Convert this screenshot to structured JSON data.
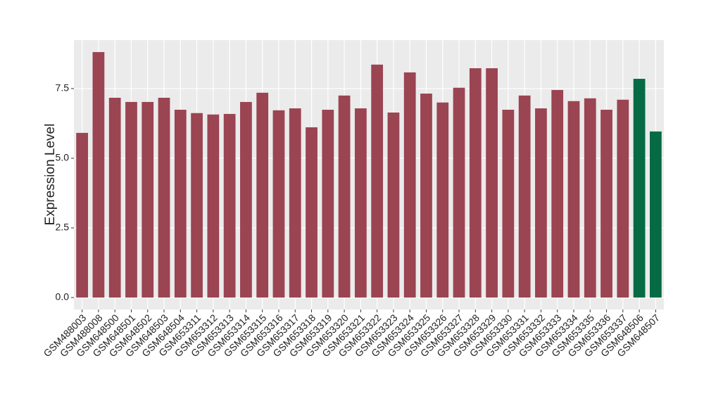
{
  "chart_data": {
    "type": "bar",
    "y_label": "Expression Level",
    "categories": [
      "GSM488003",
      "GSM488008",
      "GSM648500",
      "GSM648501",
      "GSM648502",
      "GSM648503",
      "GSM648504",
      "GSM653311",
      "GSM653312",
      "GSM653313",
      "GSM653314",
      "GSM653315",
      "GSM653316",
      "GSM653317",
      "GSM653318",
      "GSM653319",
      "GSM653320",
      "GSM653321",
      "GSM653322",
      "GSM653323",
      "GSM653324",
      "GSM653325",
      "GSM653326",
      "GSM653327",
      "GSM653328",
      "GSM653329",
      "GSM653330",
      "GSM653331",
      "GSM653332",
      "GSM653333",
      "GSM653334",
      "GSM653335",
      "GSM653336",
      "GSM653337",
      "GSM648506",
      "GSM648507"
    ],
    "values": [
      5.91,
      8.81,
      7.17,
      7.02,
      7.02,
      7.17,
      6.74,
      6.62,
      6.57,
      6.59,
      7.02,
      7.35,
      6.72,
      6.79,
      6.11,
      6.74,
      7.25,
      6.79,
      8.36,
      6.64,
      8.08,
      7.32,
      7.0,
      7.53,
      8.23,
      8.23,
      6.74,
      7.25,
      6.79,
      7.45,
      7.05,
      7.15,
      6.74,
      7.1,
      7.85,
      5.96
    ],
    "colors": [
      "#9b4452",
      "#9b4452",
      "#9b4452",
      "#9b4452",
      "#9b4452",
      "#9b4452",
      "#9b4452",
      "#9b4452",
      "#9b4452",
      "#9b4452",
      "#9b4452",
      "#9b4452",
      "#9b4452",
      "#9b4452",
      "#9b4452",
      "#9b4452",
      "#9b4452",
      "#9b4452",
      "#9b4452",
      "#9b4452",
      "#9b4452",
      "#9b4452",
      "#9b4452",
      "#9b4452",
      "#9b4452",
      "#9b4452",
      "#9b4452",
      "#9b4452",
      "#9b4452",
      "#9b4452",
      "#9b4452",
      "#9b4452",
      "#9b4452",
      "#9b4452",
      "#066a45",
      "#066a45"
    ],
    "ylim": [
      -0.43,
      9.24
    ],
    "yticks": [
      {
        "value": 0,
        "label": "0.0"
      },
      {
        "value": 2.5,
        "label": "2.5"
      },
      {
        "value": 5,
        "label": "5.0"
      },
      {
        "value": 7.5,
        "label": "7.5"
      }
    ],
    "grid": true
  }
}
